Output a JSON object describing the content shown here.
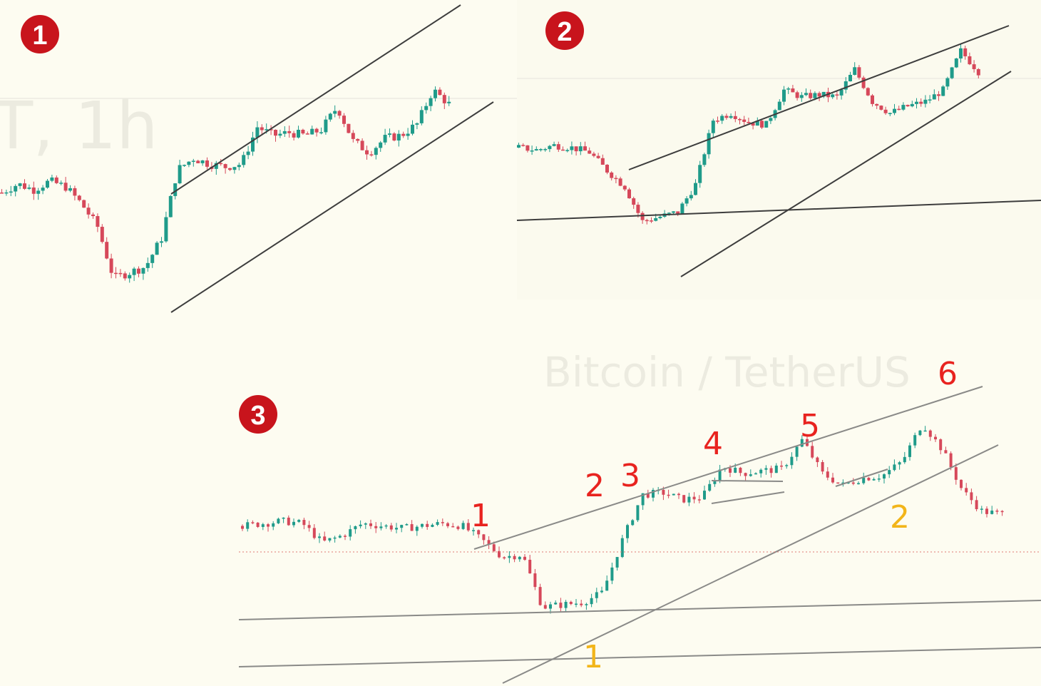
{
  "watermark": {
    "text": "Bitcoin / TetherUS",
    "faint_text": "T, 1h"
  },
  "colors": {
    "background": "#fdfcf1",
    "bull": "#1f9b8a",
    "bear": "#d6485a",
    "trendline": "#3d3d3d",
    "badge": "#c8141c",
    "annotation_red": "#e8231f",
    "annotation_yellow": "#f2b51a"
  },
  "panels": [
    {
      "badge": "1",
      "pattern": "ascending-channel"
    },
    {
      "badge": "2",
      "pattern": "rising-wedge"
    },
    {
      "badge": "3",
      "pattern": "rising-wedge",
      "red_marks": [
        "1",
        "2",
        "3",
        "4",
        "5",
        "6"
      ],
      "yellow_marks": [
        "1",
        "2"
      ]
    }
  ],
  "chart_data": [
    {
      "type": "line",
      "title": "",
      "xlabel": "",
      "ylabel": "",
      "series": [
        {
          "values": [
            50,
            53,
            51,
            54,
            52,
            46,
            38,
            20,
            22,
            24,
            34,
            58,
            62,
            60,
            59,
            60,
            73,
            70,
            71,
            70,
            72,
            80,
            68,
            64,
            69,
            70,
            74,
            86,
            81
          ]
        }
      ]
    },
    {
      "type": "line",
      "title": "",
      "xlabel": "",
      "ylabel": "",
      "series": [
        {
          "values": [
            52,
            51,
            53,
            52,
            50,
            42,
            35,
            20,
            22,
            24,
            36,
            64,
            67,
            63,
            62,
            77,
            74,
            75,
            74,
            86,
            72,
            67,
            70,
            72,
            77,
            94,
            85
          ]
        }
      ]
    },
    {
      "type": "line",
      "title": "",
      "xlabel": "",
      "ylabel": "",
      "series": [
        {
          "values": [
            50,
            51,
            52,
            51,
            43,
            46,
            51,
            50,
            49,
            50,
            51,
            50,
            44,
            37,
            38,
            16,
            17,
            18,
            22,
            44,
            63,
            64,
            61,
            62,
            75,
            72,
            73,
            74,
            86,
            72,
            67,
            70,
            71,
            77,
            93,
            82,
            65,
            56,
            55
          ]
        }
      ]
    }
  ]
}
